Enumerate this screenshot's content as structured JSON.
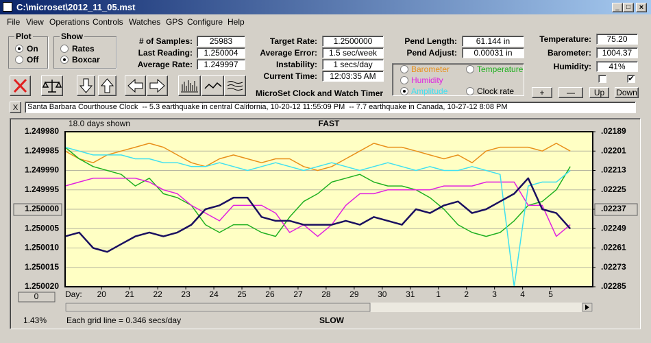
{
  "window_title": "C:\\microset\\2012_11_05.mst",
  "menu": [
    "File",
    "View",
    "Operations",
    "Controls",
    "Watches",
    "GPS",
    "Configure",
    "Help"
  ],
  "plot": {
    "label": "Plot",
    "options": [
      "On",
      "Off"
    ]
  },
  "show": {
    "label": "Show",
    "options": [
      "Rates",
      "Boxcar"
    ]
  },
  "fields": {
    "stats": [
      {
        "label": "# of Samples:",
        "value": "25983"
      },
      {
        "label": "Last Reading:",
        "value": "1.250004"
      },
      {
        "label": "Average Rate:",
        "value": "1.249997"
      }
    ],
    "rates": [
      {
        "label": "Target Rate:",
        "value": "1.2500000"
      },
      {
        "label": "Average Error:",
        "value": "1.5 sec/week"
      },
      {
        "label": "Instability:",
        "value": "1 secs/day"
      },
      {
        "label": "Current Time:",
        "value": "12:03:35 AM"
      }
    ],
    "pendulum": [
      {
        "label": "Pend Length:",
        "value": "61.144 in"
      },
      {
        "label": "Pend Adjust:",
        "value": "0.00031 in"
      }
    ],
    "environment": [
      {
        "label": "Temperature:",
        "value": "75.20"
      },
      {
        "label": "Barometer:",
        "value": "1004.37"
      },
      {
        "label": "Humidity:",
        "value": "41%"
      }
    ]
  },
  "subtitle": "MicroSet Clock and Watch Timer",
  "adjust_buttons": [
    "+",
    "—",
    "Up",
    "Down"
  ],
  "status_close": "X",
  "status": "Santa Barbara Courthouse Clock  -- 5.3 earthquake in central California, 10-20-12 11:55:09 PM  -- 7.7 earthquake in Canada, 10-27-12 8:08 PM",
  "chart_data": {
    "type": "line",
    "title": "FAST",
    "footer": "SLOW",
    "days_shown": "18.0 days shown",
    "grid_note": "Each grid line = 0.346 secs/day",
    "percent": "1.43%",
    "xlabel": "Day:",
    "offset_button": "0",
    "grid": true,
    "xlim": [
      0,
      18.8
    ],
    "xticks": [
      {
        "value": 1.3,
        "label": "20"
      },
      {
        "value": 2.3,
        "label": "21"
      },
      {
        "value": 3.3,
        "label": "22"
      },
      {
        "value": 4.3,
        "label": "23"
      },
      {
        "value": 5.3,
        "label": "24"
      },
      {
        "value": 6.3,
        "label": "25"
      },
      {
        "value": 7.3,
        "label": "26"
      },
      {
        "value": 8.3,
        "label": "27"
      },
      {
        "value": 9.3,
        "label": "28"
      },
      {
        "value": 10.3,
        "label": "29"
      },
      {
        "value": 11.3,
        "label": "30"
      },
      {
        "value": 12.3,
        "label": "31"
      },
      {
        "value": 13.3,
        "label": "1"
      },
      {
        "value": 14.3,
        "label": "2"
      },
      {
        "value": 15.3,
        "label": "3"
      },
      {
        "value": 16.3,
        "label": "4"
      },
      {
        "value": 17.3,
        "label": "5"
      }
    ],
    "ylim": [
      1.25002,
      1.24998
    ],
    "yticks": [
      {
        "value": 1.24998,
        "label": "1.249980"
      },
      {
        "value": 1.249985,
        "label": "1.249985"
      },
      {
        "value": 1.24999,
        "label": "1.249990"
      },
      {
        "value": 1.249995,
        "label": "1.249995"
      },
      {
        "value": 1.25,
        "label": "1.250000"
      },
      {
        "value": 1.250005,
        "label": "1.250005"
      },
      {
        "value": 1.25001,
        "label": "1.250010"
      },
      {
        "value": 1.250015,
        "label": "1.250015"
      },
      {
        "value": 1.25002,
        "label": "1.250020"
      }
    ],
    "y2lim": [
      0.02285,
      0.02189
    ],
    "y2ticks": [
      {
        "value": 0.02189,
        "label": ".02189"
      },
      {
        "value": 0.02201,
        "label": ".02201"
      },
      {
        "value": 0.02213,
        "label": ".02213"
      },
      {
        "value": 0.02225,
        "label": ".02225"
      },
      {
        "value": 0.02237,
        "label": ".02237"
      },
      {
        "value": 0.02249,
        "label": ".02249"
      },
      {
        "value": 0.02261,
        "label": ".02261"
      },
      {
        "value": 0.02273,
        "label": ".02273"
      },
      {
        "value": 0.02285,
        "label": ".02285"
      }
    ],
    "x": [
      0,
      0.5,
      1,
      1.5,
      2,
      2.5,
      3,
      3.5,
      4,
      4.5,
      5,
      5.5,
      6,
      6.5,
      7,
      7.5,
      8,
      8.5,
      9,
      9.5,
      10,
      10.5,
      11,
      11.5,
      12,
      12.5,
      13,
      13.5,
      14,
      14.5,
      15,
      15.5,
      16,
      16.5,
      17,
      17.5,
      18
    ],
    "series": [
      {
        "name": "Barometer",
        "color": "#e8901a",
        "values": [
          1.249985,
          1.249987,
          1.249988,
          1.249986,
          1.249985,
          1.249984,
          1.249983,
          1.249984,
          1.249986,
          1.249988,
          1.249989,
          1.249987,
          1.249986,
          1.249987,
          1.249988,
          1.249987,
          1.249987,
          1.249989,
          1.24999,
          1.249989,
          1.249987,
          1.249985,
          1.249983,
          1.249984,
          1.249984,
          1.249985,
          1.249986,
          1.249987,
          1.249986,
          1.249988,
          1.249985,
          1.249984,
          1.249984,
          1.249984,
          1.249985,
          1.249983,
          1.249985
        ]
      },
      {
        "name": "Temperature",
        "color": "#20b020",
        "values": [
          1.249984,
          1.249987,
          1.249989,
          1.24999,
          1.249991,
          1.249994,
          1.249992,
          1.249996,
          1.249997,
          1.249999,
          1.250004,
          1.250006,
          1.250004,
          1.250004,
          1.250006,
          1.250007,
          1.250002,
          1.249998,
          1.249996,
          1.249993,
          1.249992,
          1.249991,
          1.249993,
          1.249994,
          1.249994,
          1.249995,
          1.249997,
          1.25,
          1.250004,
          1.250006,
          1.250007,
          1.250006,
          1.250003,
          1.249999,
          1.249998,
          1.249995,
          1.249989
        ]
      },
      {
        "name": "Humidity",
        "color": "#e020e0",
        "values": [
          1.249994,
          1.249993,
          1.249992,
          1.249992,
          1.249992,
          1.249992,
          1.249993,
          1.249995,
          1.249996,
          1.249999,
          1.250001,
          1.250003,
          1.249999,
          1.249999,
          1.249999,
          1.250001,
          1.250006,
          1.250004,
          1.250007,
          1.250004,
          1.249999,
          1.249996,
          1.249996,
          1.249995,
          1.249995,
          1.249995,
          1.249995,
          1.249994,
          1.249994,
          1.249994,
          1.249993,
          1.249993,
          1.249993,
          1.249999,
          1.249999,
          1.250007,
          1.250004
        ]
      },
      {
        "name": "Amplitude",
        "color": "#40e0f0",
        "values": [
          1.249984,
          1.249985,
          1.249986,
          1.249986,
          1.249986,
          1.249987,
          1.249987,
          1.249988,
          1.249988,
          1.249989,
          1.249989,
          1.249988,
          1.249989,
          1.24999,
          1.249989,
          1.249988,
          1.249989,
          1.24999,
          1.249989,
          1.249988,
          1.249989,
          1.24999,
          1.249989,
          1.249988,
          1.249989,
          1.24999,
          1.249989,
          1.24999,
          1.24999,
          1.249989,
          1.24999,
          1.249991,
          1.25002,
          1.249994,
          1.249993,
          1.249993,
          1.24999
        ]
      },
      {
        "name": "Clock rate",
        "color": "#1a1060",
        "values": [
          1.250007,
          1.250006,
          1.25001,
          1.250011,
          1.250009,
          1.250007,
          1.250006,
          1.250007,
          1.250006,
          1.250004,
          1.25,
          1.249999,
          1.249997,
          1.249997,
          1.250002,
          1.250003,
          1.250003,
          1.250004,
          1.250004,
          1.250004,
          1.250003,
          1.250004,
          1.250002,
          1.250003,
          1.250004,
          1.25,
          1.250001,
          1.249999,
          1.249998,
          1.250001,
          1.25,
          1.249998,
          1.249996,
          1.249992,
          1.25,
          1.250001,
          1.250005
        ]
      }
    ]
  }
}
